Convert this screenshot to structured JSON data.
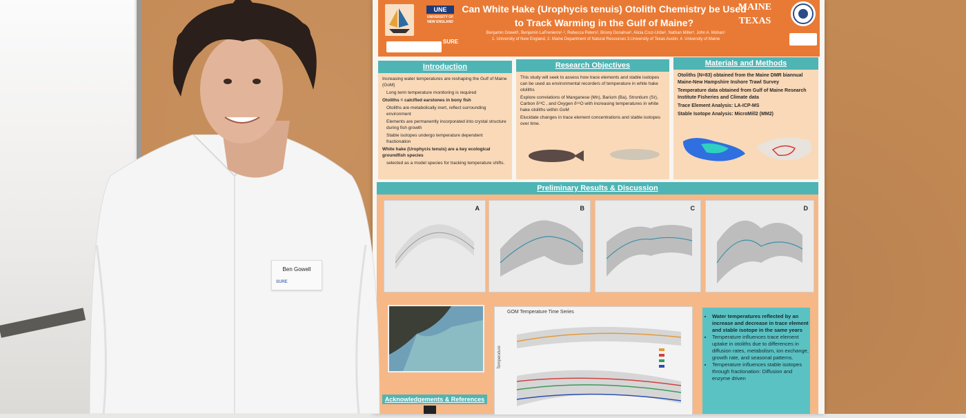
{
  "poster": {
    "title": "Can White Hake (Urophycis tenuis) Otolith Chemistry be Used to Track Warming in the Gulf of Maine?",
    "authors": "Benjamin Gowell¹, Benjamin LaFrenierre¹·², Rebecca Peters², Briony Donahue², Alicia Cruz-Uribe³, Nathan Miller³, John A. Mohan¹",
    "affiliations": "1. University of New England, 2. Maine Department of Natural Resources 3.University of Texas Austin, 4. University of Maine",
    "logos": {
      "une": "UNE",
      "une_sub": "UNIVERSITY OF NEW ENGLAND",
      "sure": "SURE",
      "maine": "MAINE",
      "texas": "TEXAS"
    },
    "sections": {
      "introduction": {
        "heading": "Introduction",
        "bullets": [
          "Increasing water temperatures are reshaping the Gulf of Maine (GoM)",
          "Long term temperature monitoring is required",
          "Otoliths = calcified earstones in bony fish",
          "Otoliths are metabolically inert, reflect surrounding environment",
          "Elements are permanently incorporated into crystal structure during fish growth",
          "Stable isotopes undergo temperature dependent fractionation",
          "White hake (Urophycis tenuis) are a key ecological groundfish species",
          "selected as a model species for tracking temperature shifts."
        ]
      },
      "objectives": {
        "heading": "Research Objectives",
        "bullets": [
          "This study will seek to assess how trace elements and stable isotopes can be used as environmental recorders of temperature in white hake otoliths",
          "Explore correlations of Manganese (Mn), Barium (Ba), Strontium (Sr), Carbon δ¹³C , and Oxygen δ¹⁸O with increasing temperatures in white hake otoliths within GoM",
          "Elucidate changes in trace element concentrations and stable isotopes over time."
        ]
      },
      "methods": {
        "heading": "Materials and Methods",
        "bullets": [
          "Otoliths (N=83) obtained from the Maine DMR biannual Maine-New Hampshire Inshore Trawl Survey",
          "Temperature data obtained from Gulf of Maine Research Institute Fisheries and Climate data",
          "Trace Element Analysis: LA-ICP-MS",
          "Stable Isotope Analysis: MicroMill2 (MM2)"
        ]
      },
      "results": {
        "heading": "Preliminary Results & Discussion",
        "panel_letters": [
          "A",
          "B",
          "C",
          "D"
        ],
        "big_chart_title": "GOM Temperature Time Series",
        "big_chart_ylabel": "Temperature",
        "conclusions": [
          "Water temperatures reflected by an increase and decrease in trace element and stable isotope in the same years",
          "Temperature influences trace element uptake in otoliths due to differences in diffusion rates, metabolism, ion exchange, growth rate, and seasonal patterns.",
          "Temperature influences stable isotopes through fractionation: Diffusion and enzyme driven"
        ]
      },
      "acknowledgements": {
        "heading": "Acknowledgements & References"
      }
    }
  },
  "name_tag": {
    "name": "Ben Gowell",
    "sub": "SURE"
  },
  "colors": {
    "poster_orange": "#e97a35",
    "teal": "#4fb4b4",
    "cork": "#c48a55",
    "shirt": "#f5f5f5"
  }
}
